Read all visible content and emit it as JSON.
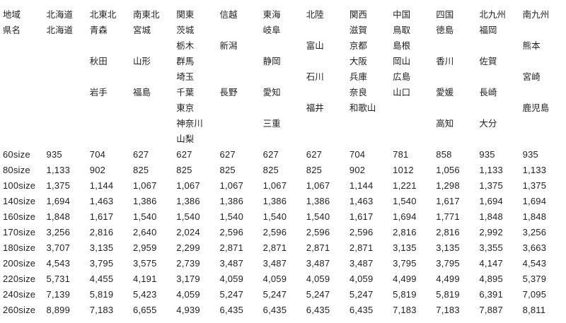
{
  "table": {
    "region_label": "地域",
    "regions": [
      "北海道",
      "北東北",
      "南東北",
      "関東",
      "信越",
      "東海",
      "北陸",
      "関西",
      "中国",
      "四国",
      "北九州",
      "南九州"
    ],
    "prefecture_rows": [
      [
        "県名",
        "北海道",
        "青森",
        "宮城",
        "茨城",
        "",
        "岐阜",
        "",
        "滋賀",
        "鳥取",
        "徳島",
        "福岡",
        ""
      ],
      [
        "",
        "",
        "",
        "",
        "栃木",
        "新潟",
        "",
        "富山",
        "京都",
        "島根",
        "",
        "",
        "熊本"
      ],
      [
        "",
        "",
        "秋田",
        "山形",
        "群馬",
        "",
        "静岡",
        "",
        "大阪",
        "岡山",
        "香川",
        "佐賀",
        ""
      ],
      [
        "",
        "",
        "",
        "",
        "埼玉",
        "",
        "",
        "石川",
        "兵庫",
        "広島",
        "",
        "",
        "宮崎"
      ],
      [
        "",
        "",
        "岩手",
        "福島",
        "千葉",
        "長野",
        "愛知",
        "",
        "奈良",
        "山口",
        "愛媛",
        "長崎",
        ""
      ],
      [
        "",
        "",
        "",
        "",
        "東京",
        "",
        "",
        "福井",
        "和歌山",
        "",
        "",
        "",
        "鹿児島"
      ],
      [
        "",
        "",
        "",
        "",
        "神奈川",
        "",
        "三重",
        "",
        "",
        "",
        "高知",
        "大分",
        ""
      ],
      [
        "",
        "",
        "",
        "",
        "山梨",
        "",
        "",
        "",
        "",
        "",
        "",
        "",
        ""
      ]
    ],
    "rate_rows": [
      {
        "size": "60size",
        "values": [
          "935",
          "704",
          "627",
          "627",
          "627",
          "627",
          "627",
          "704",
          "781",
          "858",
          "935",
          "935"
        ]
      },
      {
        "size": "80size",
        "values": [
          "1,133",
          "902",
          "825",
          "825",
          "825",
          "825",
          "825",
          "902",
          "1012",
          "1,056",
          "1,133",
          "1,133"
        ]
      },
      {
        "size": "100size",
        "values": [
          "1,375",
          "1,144",
          "1,067",
          "1,067",
          "1,067",
          "1,067",
          "1,067",
          "1,144",
          "1,221",
          "1,298",
          "1,375",
          "1,375"
        ]
      },
      {
        "size": "140size",
        "values": [
          "1,694",
          "1,463",
          "1,386",
          "1,386",
          "1,386",
          "1,386",
          "1,386",
          "1,463",
          "1,540",
          "1,617",
          "1,694",
          "1,694"
        ]
      },
      {
        "size": "160size",
        "values": [
          "1,848",
          "1,617",
          "1,540",
          "1,540",
          "1,540",
          "1,540",
          "1,540",
          "1,617",
          "1,694",
          "1,771",
          "1,848",
          "1,848"
        ]
      },
      {
        "size": "170size",
        "values": [
          "3,256",
          "2,816",
          "2,640",
          "2,024",
          "2,596",
          "2,596",
          "2,596",
          "2,596",
          "2,816",
          "2,816",
          "2,992",
          "3,256"
        ]
      },
      {
        "size": "180size",
        "values": [
          "3,707",
          "3,135",
          "2,959",
          "2,299",
          "2,871",
          "2,871",
          "2,871",
          "2,871",
          "3,135",
          "3,135",
          "3,355",
          "3,663"
        ]
      },
      {
        "size": "200size",
        "values": [
          "4,543",
          "3,795",
          "3,575",
          "2,739",
          "3,487",
          "3,487",
          "3,487",
          "3,487",
          "3,795",
          "3,795",
          "4,147",
          "4,543"
        ]
      },
      {
        "size": "220size",
        "values": [
          "5,731",
          "4,455",
          "4,191",
          "3,179",
          "4,059",
          "4,059",
          "4,059",
          "4,059",
          "4,499",
          "4,499",
          "4,895",
          "5,379"
        ]
      },
      {
        "size": "240size",
        "values": [
          "7,139",
          "5,819",
          "5,423",
          "4,059",
          "5,247",
          "5,247",
          "5,247",
          "5,247",
          "5,819",
          "5,819",
          "6,391",
          "7,095"
        ]
      },
      {
        "size": "260size",
        "values": [
          "8,899",
          "7,183",
          "6,655",
          "4,939",
          "6,435",
          "6,435",
          "6,435",
          "6,435",
          "7,183",
          "7,183",
          "7,887",
          "8,811"
        ]
      }
    ]
  }
}
